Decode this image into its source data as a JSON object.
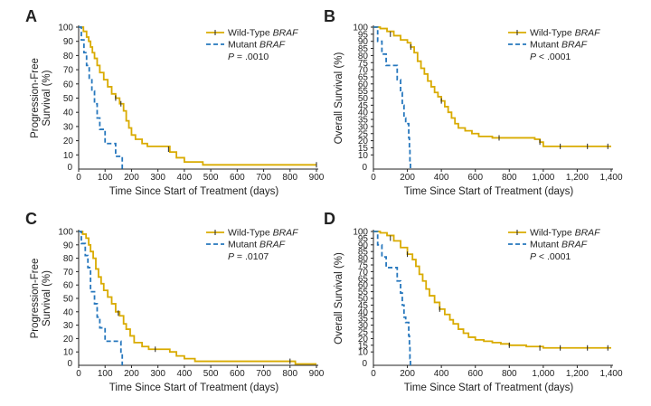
{
  "colors": {
    "wild_type": "#d9ab00",
    "mutant": "#2677bd",
    "axis": "#222222",
    "censor": "#222222"
  },
  "chart_data": [
    {
      "panel": "A",
      "type": "line",
      "ylabel_lines": [
        "Progression-Free",
        "Survival (%)"
      ],
      "xlabel": "Time Since Start of Treatment (days)",
      "xlim": [
        0,
        900
      ],
      "ylim": [
        0,
        100
      ],
      "xticks": [
        0,
        100,
        200,
        300,
        400,
        500,
        600,
        700,
        800,
        900
      ],
      "xtick_labels": [
        "0",
        "100",
        "200",
        "300",
        "400",
        "500",
        "600",
        "700",
        "800",
        "900"
      ],
      "yticks": [
        10,
        20,
        30,
        40,
        50,
        60,
        70,
        80,
        90,
        100
      ],
      "ytick_labels": [
        "10",
        "20",
        "30",
        "40",
        "50",
        "60",
        "70",
        "80",
        "90",
        "100"
      ],
      "legend": {
        "wild_label": "Wild-Type ",
        "mutant_label": "Mutant ",
        "gene": "BRAF",
        "p_prefix": "P",
        "p_value": " = .0010"
      },
      "series": [
        {
          "name": "Wild-Type BRAF",
          "style": "solid",
          "points": [
            [
              0,
              100
            ],
            [
              18,
              97
            ],
            [
              30,
              93
            ],
            [
              38,
              90
            ],
            [
              45,
              86
            ],
            [
              52,
              82
            ],
            [
              60,
              78
            ],
            [
              70,
              73
            ],
            [
              80,
              68
            ],
            [
              95,
              63
            ],
            [
              110,
              58
            ],
            [
              125,
              53
            ],
            [
              140,
              50
            ],
            [
              155,
              46
            ],
            [
              170,
              41
            ],
            [
              180,
              34
            ],
            [
              190,
              29
            ],
            [
              200,
              24
            ],
            [
              215,
              21
            ],
            [
              240,
              18
            ],
            [
              260,
              16
            ],
            [
              330,
              16
            ],
            [
              345,
              12
            ],
            [
              370,
              8
            ],
            [
              400,
              5
            ],
            [
              440,
              5
            ],
            [
              470,
              3
            ],
            [
              900,
              3
            ]
          ],
          "censors": [
            [
              140,
              50
            ],
            [
              160,
              46
            ],
            [
              340,
              14
            ],
            [
              900,
              3
            ]
          ]
        },
        {
          "name": "Mutant BRAF",
          "style": "dashed",
          "points": [
            [
              0,
              100
            ],
            [
              10,
              91
            ],
            [
              20,
              82
            ],
            [
              30,
              73
            ],
            [
              40,
              64
            ],
            [
              50,
              55
            ],
            [
              60,
              46
            ],
            [
              70,
              36
            ],
            [
              80,
              28
            ],
            [
              100,
              18
            ],
            [
              130,
              18
            ],
            [
              140,
              9
            ],
            [
              160,
              9
            ],
            [
              165,
              0
            ]
          ],
          "censors": []
        }
      ]
    },
    {
      "panel": "B",
      "type": "line",
      "ylabel_lines": [
        "Overall Survival (%)"
      ],
      "xlabel": "Time Since Start of Treatment (days)",
      "xlim": [
        0,
        1400
      ],
      "ylim": [
        0,
        100
      ],
      "xticks": [
        0,
        200,
        400,
        600,
        800,
        1000,
        1200,
        1400
      ],
      "xtick_labels": [
        "0",
        "200",
        "400",
        "600",
        "800",
        "1,000",
        "1,200",
        "1,400"
      ],
      "yticks": [
        10,
        15,
        20,
        25,
        30,
        35,
        40,
        45,
        50,
        55,
        60,
        65,
        70,
        75,
        80,
        85,
        90,
        95,
        100
      ],
      "ytick_labels": [
        "10",
        "15",
        "20",
        "25",
        "30",
        "35",
        "40",
        "45",
        "50",
        "55",
        "60",
        "65",
        "70",
        "75",
        "80",
        "85",
        "90",
        "95",
        "100"
      ],
      "legend": {
        "wild_label": "Wild-Type ",
        "mutant_label": "Mutant ",
        "gene": "BRAF",
        "p_prefix": "P",
        "p_value": " < .0001"
      },
      "series": [
        {
          "name": "Wild-Type BRAF",
          "style": "solid",
          "points": [
            [
              0,
              100
            ],
            [
              40,
              99
            ],
            [
              80,
              97
            ],
            [
              120,
              94
            ],
            [
              160,
              91
            ],
            [
              200,
              89
            ],
            [
              220,
              86
            ],
            [
              240,
              82
            ],
            [
              260,
              76
            ],
            [
              280,
              71
            ],
            [
              300,
              67
            ],
            [
              320,
              62
            ],
            [
              340,
              58
            ],
            [
              360,
              54
            ],
            [
              380,
              51
            ],
            [
              400,
              48
            ],
            [
              420,
              44
            ],
            [
              440,
              40
            ],
            [
              460,
              36
            ],
            [
              480,
              32
            ],
            [
              500,
              29
            ],
            [
              540,
              27
            ],
            [
              580,
              25
            ],
            [
              620,
              23
            ],
            [
              700,
              22
            ],
            [
              800,
              22
            ],
            [
              950,
              21
            ],
            [
              980,
              19
            ],
            [
              1000,
              16
            ],
            [
              1400,
              16
            ]
          ],
          "censors": [
            [
              100,
              95
            ],
            [
              220,
              86
            ],
            [
              400,
              48
            ],
            [
              740,
              22
            ],
            [
              980,
              19
            ],
            [
              1100,
              16
            ],
            [
              1260,
              16
            ],
            [
              1380,
              16
            ]
          ]
        },
        {
          "name": "Mutant BRAF",
          "style": "dashed",
          "points": [
            [
              0,
              100
            ],
            [
              25,
              90
            ],
            [
              50,
              81
            ],
            [
              75,
              73
            ],
            [
              130,
              73
            ],
            [
              140,
              63
            ],
            [
              160,
              54
            ],
            [
              170,
              45
            ],
            [
              180,
              36
            ],
            [
              190,
              32
            ],
            [
              205,
              32
            ],
            [
              208,
              22
            ],
            [
              212,
              14
            ],
            [
              215,
              5
            ],
            [
              218,
              0
            ]
          ],
          "censors": []
        }
      ]
    },
    {
      "panel": "C",
      "type": "line",
      "ylabel_lines": [
        "Progression-Free",
        "Survival (%)"
      ],
      "xlabel": "Time Since Start of Treatment (days)",
      "xlim": [
        0,
        900
      ],
      "ylim": [
        0,
        100
      ],
      "xticks": [
        0,
        100,
        200,
        300,
        400,
        500,
        600,
        700,
        800,
        900
      ],
      "xtick_labels": [
        "0",
        "100",
        "200",
        "300",
        "400",
        "500",
        "600",
        "700",
        "800",
        "900"
      ],
      "yticks": [
        10,
        20,
        30,
        40,
        50,
        60,
        70,
        80,
        90,
        100
      ],
      "ytick_labels": [
        "10",
        "20",
        "30",
        "40",
        "50",
        "60",
        "70",
        "80",
        "90",
        "100"
      ],
      "legend": {
        "wild_label": "Wild-Type ",
        "mutant_label": "Mutant ",
        "gene": "BRAF",
        "p_prefix": "P",
        "p_value": " = .0107"
      },
      "series": [
        {
          "name": "Wild-Type BRAF",
          "style": "solid",
          "points": [
            [
              0,
              100
            ],
            [
              15,
              98
            ],
            [
              28,
              95
            ],
            [
              38,
              90
            ],
            [
              45,
              85
            ],
            [
              55,
              80
            ],
            [
              65,
              72
            ],
            [
              75,
              66
            ],
            [
              85,
              61
            ],
            [
              95,
              56
            ],
            [
              110,
              51
            ],
            [
              125,
              46
            ],
            [
              140,
              40
            ],
            [
              155,
              37
            ],
            [
              170,
              31
            ],
            [
              180,
              27
            ],
            [
              195,
              22
            ],
            [
              210,
              17
            ],
            [
              240,
              14
            ],
            [
              265,
              12
            ],
            [
              330,
              12
            ],
            [
              345,
              10
            ],
            [
              370,
              7
            ],
            [
              400,
              5
            ],
            [
              440,
              3
            ],
            [
              800,
              3
            ],
            [
              820,
              1
            ],
            [
              900,
              1
            ]
          ],
          "censors": [
            [
              150,
              39
            ],
            [
              290,
              12
            ],
            [
              800,
              3
            ]
          ]
        },
        {
          "name": "Mutant BRAF",
          "style": "dashed",
          "points": [
            [
              0,
              100
            ],
            [
              10,
              91
            ],
            [
              25,
              82
            ],
            [
              35,
              73
            ],
            [
              45,
              55
            ],
            [
              60,
              46
            ],
            [
              70,
              36
            ],
            [
              80,
              28
            ],
            [
              100,
              18
            ],
            [
              150,
              18
            ],
            [
              160,
              9
            ],
            [
              165,
              0
            ]
          ],
          "censors": []
        }
      ]
    },
    {
      "panel": "D",
      "type": "line",
      "ylabel_lines": [
        "Overall Survival (%)"
      ],
      "xlabel": "Time Since Start of Treatment (days)",
      "xlim": [
        0,
        1400
      ],
      "ylim": [
        0,
        100
      ],
      "xticks": [
        0,
        200,
        400,
        600,
        800,
        1000,
        1200,
        1400
      ],
      "xtick_labels": [
        "0",
        "200",
        "400",
        "600",
        "800",
        "1,000",
        "1,200",
        "1,400"
      ],
      "yticks": [
        10,
        15,
        20,
        25,
        30,
        35,
        40,
        45,
        50,
        55,
        60,
        65,
        70,
        75,
        80,
        85,
        90,
        95,
        100
      ],
      "ytick_labels": [
        "10",
        "15",
        "20",
        "25",
        "30",
        "35",
        "40",
        "45",
        "50",
        "55",
        "60",
        "65",
        "70",
        "75",
        "80",
        "85",
        "90",
        "95",
        "100"
      ],
      "legend": {
        "wild_label": "Wild-Type ",
        "mutant_label": "Mutant ",
        "gene": "BRAF",
        "p_prefix": "P",
        "p_value": " < .0001"
      },
      "series": [
        {
          "name": "Wild-Type BRAF",
          "style": "solid",
          "points": [
            [
              0,
              100
            ],
            [
              40,
              99
            ],
            [
              80,
              97
            ],
            [
              120,
              93
            ],
            [
              160,
              88
            ],
            [
              200,
              83
            ],
            [
              230,
              79
            ],
            [
              250,
              74
            ],
            [
              270,
              68
            ],
            [
              290,
              63
            ],
            [
              310,
              57
            ],
            [
              330,
              52
            ],
            [
              360,
              47
            ],
            [
              390,
              42
            ],
            [
              420,
              38
            ],
            [
              450,
              34
            ],
            [
              470,
              31
            ],
            [
              500,
              27
            ],
            [
              530,
              24
            ],
            [
              560,
              21
            ],
            [
              600,
              19
            ],
            [
              650,
              18
            ],
            [
              700,
              17
            ],
            [
              750,
              16
            ],
            [
              800,
              15
            ],
            [
              900,
              14
            ],
            [
              1000,
              13
            ],
            [
              1400,
              13
            ]
          ],
          "censors": [
            [
              100,
              95
            ],
            [
              200,
              83
            ],
            [
              390,
              42
            ],
            [
              800,
              15
            ],
            [
              980,
              13
            ],
            [
              1100,
              13
            ],
            [
              1260,
              13
            ],
            [
              1380,
              13
            ]
          ]
        },
        {
          "name": "Mutant BRAF",
          "style": "dashed",
          "points": [
            [
              0,
              100
            ],
            [
              25,
              90
            ],
            [
              50,
              81
            ],
            [
              75,
              73
            ],
            [
              130,
              73
            ],
            [
              140,
              63
            ],
            [
              160,
              54
            ],
            [
              170,
              45
            ],
            [
              180,
              36
            ],
            [
              190,
              32
            ],
            [
              205,
              32
            ],
            [
              208,
              22
            ],
            [
              212,
              14
            ],
            [
              215,
              5
            ],
            [
              218,
              0
            ]
          ],
          "censors": []
        }
      ]
    }
  ]
}
